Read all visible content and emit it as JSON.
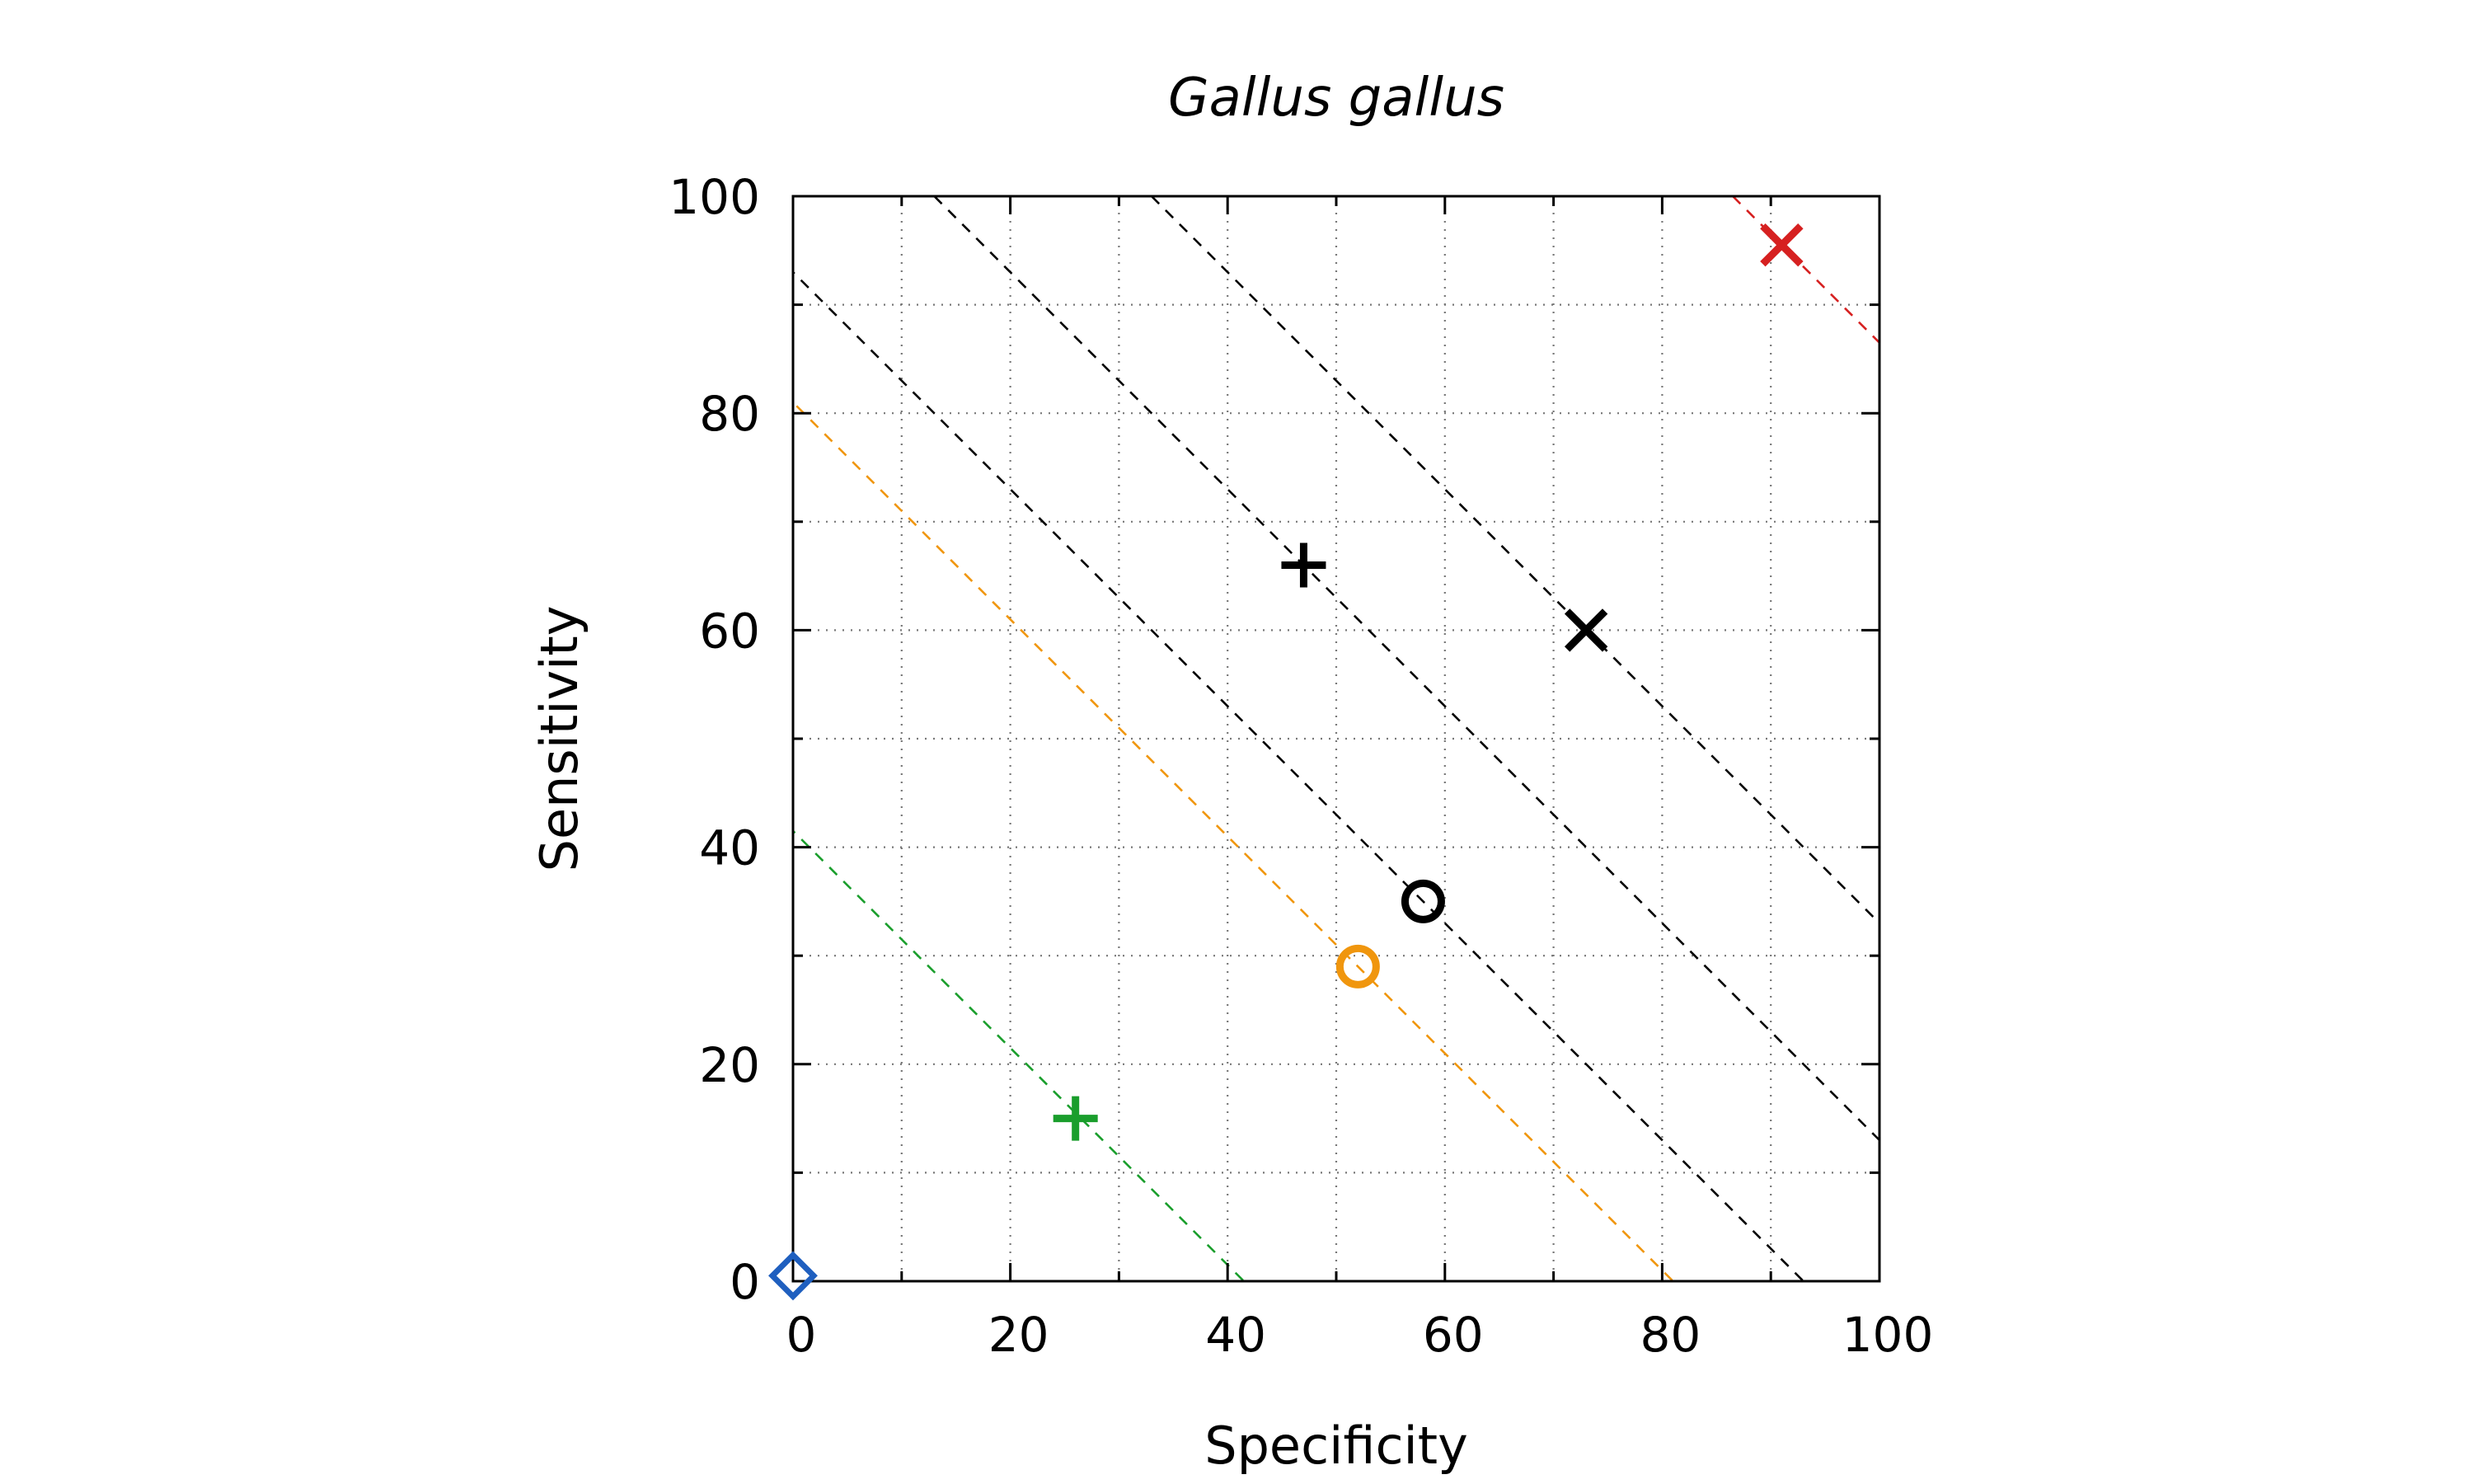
{
  "chart_data": {
    "type": "scatter",
    "title": "Gallus gallus",
    "xlabel": "Specificity",
    "ylabel": "Sensitivity",
    "xlim": [
      0,
      100
    ],
    "ylim": [
      0,
      100
    ],
    "xticks": [
      0,
      20,
      40,
      60,
      80,
      100
    ],
    "yticks": [
      0,
      20,
      40,
      60,
      80,
      100
    ],
    "xtick_labels": [
      "0",
      "20",
      "40",
      "60",
      "80",
      "100"
    ],
    "ytick_labels": [
      "0",
      "20",
      "40",
      "60",
      "80",
      "100"
    ],
    "minor_ticks_x": [
      10,
      30,
      50,
      70,
      90
    ],
    "minor_ticks_y": [
      10,
      30,
      50,
      70,
      90
    ],
    "grid": true,
    "points": [
      {
        "x": 0,
        "y": 0.5,
        "marker": "diamond",
        "color": "#1f5fbf"
      },
      {
        "x": 26,
        "y": 15,
        "marker": "plus",
        "color": "#1a9e2c"
      },
      {
        "x": 52,
        "y": 29,
        "marker": "circle",
        "color": "#f0960e"
      },
      {
        "x": 58,
        "y": 35,
        "marker": "circle",
        "color": "#000000"
      },
      {
        "x": 47,
        "y": 66,
        "marker": "plus",
        "color": "#000000"
      },
      {
        "x": 73,
        "y": 60,
        "marker": "cross",
        "color": "#000000"
      },
      {
        "x": 91,
        "y": 95.5,
        "marker": "cross",
        "color": "#d62020"
      }
    ],
    "iso_lines": [
      {
        "sum": 41.5,
        "color": "#1a9e2c"
      },
      {
        "sum": 81,
        "color": "#f0960e"
      },
      {
        "sum": 93,
        "color": "#000000"
      },
      {
        "sum": 113,
        "color": "#000000"
      },
      {
        "sum": 133,
        "color": "#000000"
      },
      {
        "sum": 186.5,
        "color": "#d62020"
      }
    ]
  }
}
